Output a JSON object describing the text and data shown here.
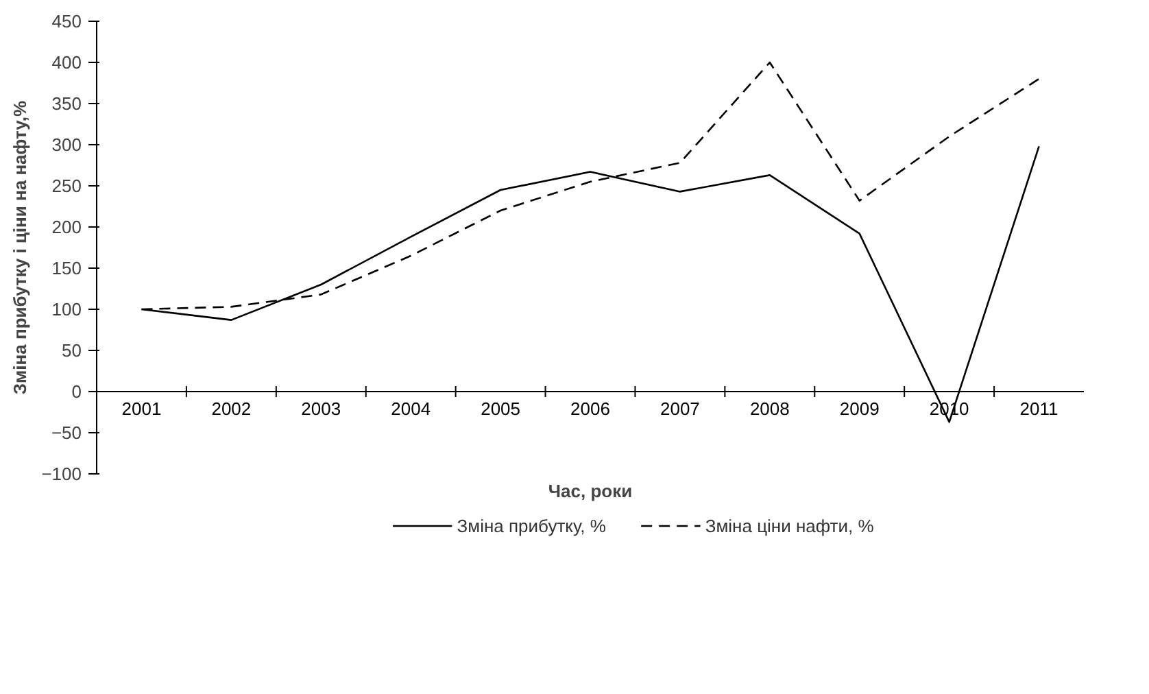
{
  "chart_data": {
    "type": "line",
    "xlabel": "Час, роки",
    "ylabel": "Зміна прибутку і ціни на нафту,%",
    "categories": [
      "2001",
      "2002",
      "2003",
      "2004",
      "2005",
      "2006",
      "2007",
      "2008",
      "2009",
      "2010",
      "2011"
    ],
    "series": [
      {
        "name": "Зміна прибутку, %",
        "color": "#000000",
        "line_style": "solid",
        "values": [
          100,
          87,
          130,
          188,
          245,
          267,
          243,
          263,
          192,
          -37,
          298
        ]
      },
      {
        "name": "Зміна ціни нафти, %",
        "color": "#000000",
        "line_style": "dashed",
        "values": [
          100,
          103,
          118,
          165,
          220,
          255,
          278,
          400,
          232,
          310,
          380
        ]
      }
    ],
    "ylim": [
      -100,
      450
    ],
    "yticks": [
      -100,
      -50,
      0,
      50,
      100,
      150,
      200,
      250,
      300,
      350,
      400,
      450
    ],
    "grid": false,
    "legend": "bottom",
    "marker": "none"
  }
}
